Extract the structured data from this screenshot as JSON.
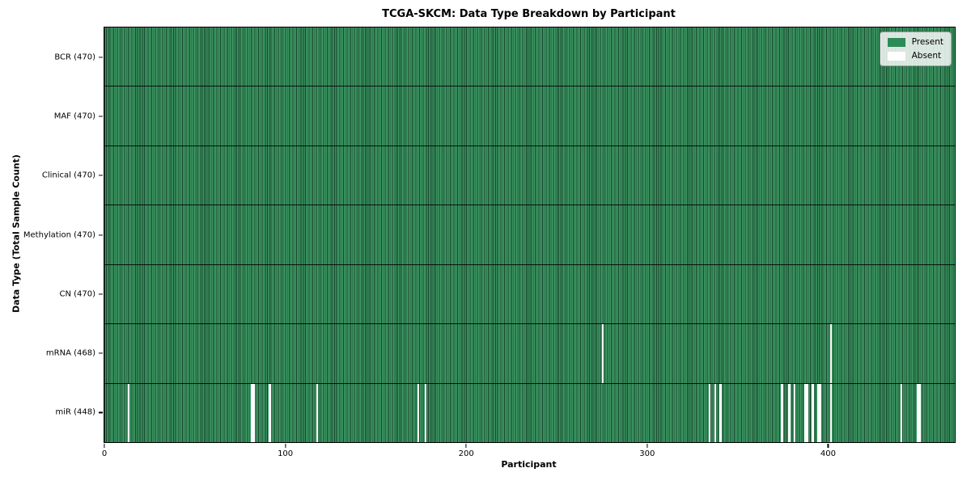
{
  "figure": {
    "title": "TCGA-SKCM: Data Type Breakdown by Participant"
  },
  "chart_data": {
    "type": "heatmap",
    "title": "TCGA-SKCM: Data Type Breakdown by Participant",
    "xlabel": "Participant",
    "ylabel": "Data Type (Total Sample Count)",
    "x_range": [
      0,
      470
    ],
    "n_participants": 470,
    "x_ticks": [
      0,
      100,
      200,
      300,
      400
    ],
    "grid": false,
    "legend_position": "upper right",
    "rows": [
      {
        "label": "BCR (470)",
        "data_type": "BCR",
        "present_count": 470,
        "absent_participants": []
      },
      {
        "label": "MAF (470)",
        "data_type": "MAF",
        "present_count": 470,
        "absent_participants": []
      },
      {
        "label": "Clinical (470)",
        "data_type": "Clinical",
        "present_count": 470,
        "absent_participants": []
      },
      {
        "label": "Methylation (470)",
        "data_type": "Methylation",
        "present_count": 470,
        "absent_participants": []
      },
      {
        "label": "CN (470)",
        "data_type": "CN",
        "present_count": 470,
        "absent_participants": []
      },
      {
        "label": "mRNA (468)",
        "data_type": "mRNA",
        "present_count": 468,
        "absent_participants": [
          275,
          401
        ]
      },
      {
        "label": "miR (448)",
        "data_type": "miR",
        "present_count": 448,
        "absent_participants": [
          13,
          81,
          82,
          91,
          117,
          173,
          177,
          334,
          337,
          340,
          374,
          378,
          381,
          387,
          388,
          391,
          394,
          395,
          401,
          440,
          449,
          450
        ]
      }
    ],
    "legend": [
      {
        "label": "Present",
        "color": "#2e8b57"
      },
      {
        "label": "Absent",
        "color": "#ffffff"
      }
    ],
    "colors": {
      "present": "#2e8b57",
      "present_edge": "#16432a",
      "absent": "#ffffff",
      "axis": "#000000"
    }
  }
}
